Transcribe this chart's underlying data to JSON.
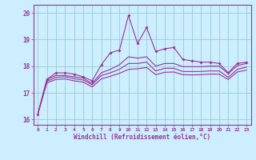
{
  "xlabel": "Windchill (Refroidissement éolien,°C)",
  "bg_color": "#cceeff",
  "line_color": "#993399",
  "grid_color": "#99cccc",
  "text_color": "#993399",
  "axis_color": "#993399",
  "xlim": [
    -0.5,
    23.5
  ],
  "ylim": [
    15.8,
    20.3
  ],
  "yticks": [
    16,
    17,
    18,
    19,
    20
  ],
  "xticks": [
    0,
    1,
    2,
    3,
    4,
    5,
    6,
    7,
    8,
    9,
    10,
    11,
    12,
    13,
    14,
    15,
    16,
    17,
    18,
    19,
    20,
    21,
    22,
    23
  ],
  "line_top": [
    16.2,
    17.5,
    17.75,
    17.75,
    17.7,
    17.6,
    17.45,
    18.05,
    18.5,
    18.6,
    19.9,
    18.85,
    19.45,
    18.55,
    18.65,
    18.7,
    18.25,
    18.2,
    18.15,
    18.15,
    18.1,
    17.75,
    18.1,
    18.15
  ],
  "line2": [
    16.2,
    17.5,
    17.65,
    17.65,
    17.6,
    17.55,
    17.35,
    17.75,
    17.88,
    18.05,
    18.35,
    18.3,
    18.35,
    18.0,
    18.1,
    18.1,
    17.98,
    17.98,
    17.98,
    18.0,
    18.0,
    17.72,
    18.02,
    18.1
  ],
  "line3": [
    16.2,
    17.43,
    17.58,
    17.6,
    17.53,
    17.48,
    17.3,
    17.65,
    17.75,
    17.88,
    18.1,
    18.1,
    18.15,
    17.82,
    17.92,
    17.92,
    17.8,
    17.8,
    17.8,
    17.82,
    17.82,
    17.58,
    17.88,
    17.96
  ],
  "line4": [
    16.2,
    17.37,
    17.5,
    17.52,
    17.45,
    17.4,
    17.22,
    17.52,
    17.62,
    17.73,
    17.88,
    17.9,
    17.95,
    17.68,
    17.77,
    17.78,
    17.68,
    17.67,
    17.68,
    17.7,
    17.7,
    17.5,
    17.78,
    17.85
  ]
}
